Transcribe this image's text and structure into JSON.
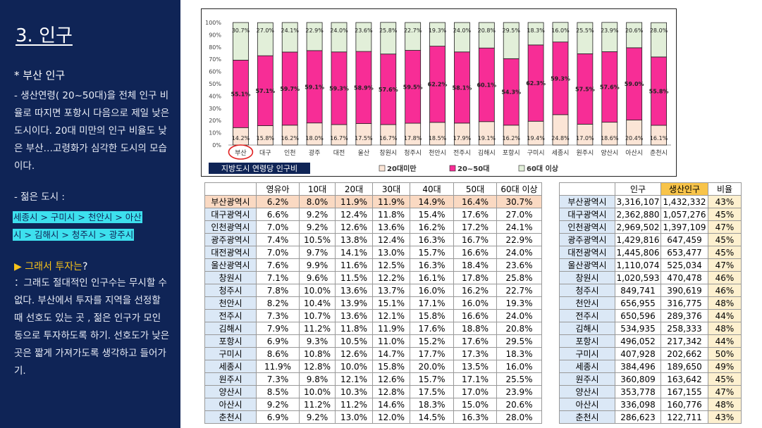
{
  "slide": {
    "title": "3. 인구",
    "subtitle": "* 부산 인구",
    "para1": "- 생산연령( 20~50대)을 전체 인구 비율로 따지면 포항시 다음으로 제일 낮은 도시이다. 20대 미만의 인구 비율도 낮은 부산…고령화가 심각한 도시의 모습이다.",
    "young_label": "- 젊은 도시 :",
    "young_line1": " 세종시 > 구미시 > 천안시 > 아산",
    "young_line2": "시 > 김해시 > 청주시 > 광주시",
    "invest_title": "그래서 투자는?",
    "invest_title_a": "그래서 투자는",
    "invest_title_b": "?",
    "invest_icon": "▶",
    "para3": "：그래도 절대적인 인구수는 무시할 수 없다. 부산에서 투자를 지역을 선정할 때 선호도 있는 곳 , 젊은 인구가 모인 동으로 투자하도록 하기. 선호도가 낮은 곳은 짧게 가져가도록 생각하고 들어가기."
  },
  "chart_data": {
    "type": "bar",
    "stacked": true,
    "percent": true,
    "title": "지방도시 연령당 인구비",
    "categories": [
      "부산",
      "대구",
      "인천",
      "광주",
      "대전",
      "울산",
      "창원시",
      "청주시",
      "천안시",
      "전주시",
      "김해시",
      "포항시",
      "구미시",
      "세종시",
      "원주시",
      "양산시",
      "아산시",
      "춘천시"
    ],
    "series": [
      {
        "name": "20대미만",
        "color": "#fbe5d6",
        "values": [
          14.2,
          15.8,
          16.2,
          18.0,
          16.7,
          17.5,
          16.7,
          17.8,
          18.5,
          17.9,
          19.1,
          16.2,
          19.4,
          24.8,
          17.0,
          18.6,
          20.4,
          16.1
        ],
        "labels": [
          "14.2%",
          "15.8%",
          "16.2%",
          "18.0%",
          "16.7%",
          "17.5%",
          "16.7%",
          "17.8%",
          "18.5%",
          "17.9%",
          "19.1%",
          "16.2%",
          "19.4%",
          "24.8%",
          "17.0%",
          "18.6%",
          "20.4%",
          "16.1%"
        ]
      },
      {
        "name": "20~50대",
        "color": "#f72d96",
        "values": [
          55.1,
          57.1,
          59.7,
          59.1,
          59.3,
          58.9,
          57.6,
          59.5,
          62.2,
          58.1,
          60.1,
          54.3,
          62.3,
          59.3,
          57.5,
          57.6,
          59.0,
          55.8
        ],
        "labels": [
          "55.1%",
          "57.1%",
          "59.7%",
          "59.1%",
          "59.3%",
          "58.9%",
          "57.6%",
          "59.5%",
          "62.2%",
          "58.1%",
          "60.1%",
          "54.3%",
          "62.3%",
          "59.3%",
          "57.5%",
          "57.6%",
          "59.0%",
          "55.8%"
        ]
      },
      {
        "name": "60대 이상",
        "color": "#e2efd9",
        "values": [
          30.7,
          27.0,
          24.1,
          22.9,
          24.0,
          23.6,
          25.8,
          22.7,
          19.3,
          24.0,
          20.8,
          29.5,
          18.3,
          16.0,
          25.5,
          23.9,
          20.6,
          28.0
        ],
        "labels": [
          "30.7%",
          "27.0%",
          "24.1%",
          "22.9%",
          "24.0%",
          "23.6%",
          "25.8%",
          "22.7%",
          "19.3%",
          "24.0%",
          "20.8%",
          "29.5%",
          "18.3%",
          "16.0%",
          "25.5%",
          "23.9%",
          "20.6%",
          "28.0%"
        ]
      }
    ],
    "y_ticks": [
      "0%",
      "10%",
      "20%",
      "30%",
      "40%",
      "50%",
      "60%",
      "70%",
      "80%",
      "90%",
      "100%"
    ],
    "ylim": [
      0,
      100
    ],
    "legend": [
      "20대미만",
      "20~50대",
      "60대 이상"
    ],
    "legend_placement": "bottom",
    "highlight_category": "부산"
  },
  "age_table": {
    "headers": [
      "",
      "영유아",
      "10대",
      "20대",
      "30대",
      "40대",
      "50대",
      "60대 이상"
    ],
    "rows": [
      [
        "부산광역시",
        "6.2%",
        "8.0%",
        "11.9%",
        "11.9%",
        "14.9%",
        "16.4%",
        "30.7%"
      ],
      [
        "대구광역시",
        "6.6%",
        "9.2%",
        "12.4%",
        "11.8%",
        "15.4%",
        "17.6%",
        "27.0%"
      ],
      [
        "인천광역시",
        "7.0%",
        "9.2%",
        "12.6%",
        "13.6%",
        "16.2%",
        "17.2%",
        "24.1%"
      ],
      [
        "광주광역시",
        "7.4%",
        "10.5%",
        "13.8%",
        "12.4%",
        "16.3%",
        "16.7%",
        "22.9%"
      ],
      [
        "대전광역시",
        "7.0%",
        "9.7%",
        "14.1%",
        "13.0%",
        "15.7%",
        "16.6%",
        "24.0%"
      ],
      [
        "울산광역시",
        "7.6%",
        "9.9%",
        "11.6%",
        "12.5%",
        "16.3%",
        "18.4%",
        "23.6%"
      ],
      [
        "창원시",
        "7.1%",
        "9.6%",
        "11.5%",
        "12.2%",
        "16.1%",
        "17.8%",
        "25.8%"
      ],
      [
        "청주시",
        "7.8%",
        "10.0%",
        "13.6%",
        "13.7%",
        "16.0%",
        "16.2%",
        "22.7%"
      ],
      [
        "천안시",
        "8.2%",
        "10.4%",
        "13.9%",
        "15.1%",
        "17.1%",
        "16.0%",
        "19.3%"
      ],
      [
        "전주시",
        "7.3%",
        "10.7%",
        "13.6%",
        "12.1%",
        "15.8%",
        "16.6%",
        "24.0%"
      ],
      [
        "김해시",
        "7.9%",
        "11.2%",
        "11.8%",
        "11.9%",
        "17.6%",
        "18.8%",
        "20.8%"
      ],
      [
        "포항시",
        "6.9%",
        "9.3%",
        "10.5%",
        "11.0%",
        "15.2%",
        "17.6%",
        "29.5%"
      ],
      [
        "구미시",
        "8.6%",
        "10.8%",
        "12.6%",
        "14.7%",
        "17.7%",
        "17.3%",
        "18.3%"
      ],
      [
        "세종시",
        "11.9%",
        "12.8%",
        "10.0%",
        "15.8%",
        "20.0%",
        "13.5%",
        "16.0%"
      ],
      [
        "원주시",
        "7.3%",
        "9.8%",
        "12.1%",
        "12.6%",
        "15.7%",
        "17.1%",
        "25.5%"
      ],
      [
        "양산시",
        "8.5%",
        "10.0%",
        "10.3%",
        "12.8%",
        "17.5%",
        "17.0%",
        "23.9%"
      ],
      [
        "아산시",
        "9.2%",
        "11.2%",
        "11.2%",
        "14.6%",
        "18.3%",
        "15.0%",
        "20.6%"
      ],
      [
        "춘천시",
        "6.9%",
        "9.2%",
        "13.0%",
        "12.0%",
        "14.5%",
        "16.3%",
        "28.0%"
      ]
    ]
  },
  "pop_table": {
    "headers": [
      "",
      "인구",
      "생산인구",
      "비율"
    ],
    "rows": [
      [
        "부산광역시",
        "3,316,107",
        "1,432,332",
        "43%"
      ],
      [
        "대구광역시",
        "2,362,880",
        "1,057,276",
        "45%"
      ],
      [
        "인천광역시",
        "2,969,502",
        "1,397,109",
        "47%"
      ],
      [
        "광주광역시",
        "1,429,816",
        "647,459",
        "45%"
      ],
      [
        "대전광역시",
        "1,445,806",
        "653,477",
        "45%"
      ],
      [
        "울산광역시",
        "1,110,074",
        "525,034",
        "47%"
      ],
      [
        "창원시",
        "1,020,593",
        "470,478",
        "46%"
      ],
      [
        "청주시",
        "849,741",
        "390,619",
        "46%"
      ],
      [
        "천안시",
        "656,955",
        "316,775",
        "48%"
      ],
      [
        "전주시",
        "650,596",
        "289,376",
        "44%"
      ],
      [
        "김해시",
        "534,935",
        "258,333",
        "48%"
      ],
      [
        "포항시",
        "496,052",
        "217,342",
        "44%"
      ],
      [
        "구미시",
        "407,928",
        "202,662",
        "50%"
      ],
      [
        "세종시",
        "384,496",
        "189,650",
        "49%"
      ],
      [
        "원주시",
        "360,809",
        "163,642",
        "45%"
      ],
      [
        "양산시",
        "353,778",
        "167,155",
        "47%"
      ],
      [
        "아산시",
        "336,098",
        "160,776",
        "48%"
      ],
      [
        "춘천시",
        "286,623",
        "122,711",
        "43%"
      ]
    ]
  }
}
